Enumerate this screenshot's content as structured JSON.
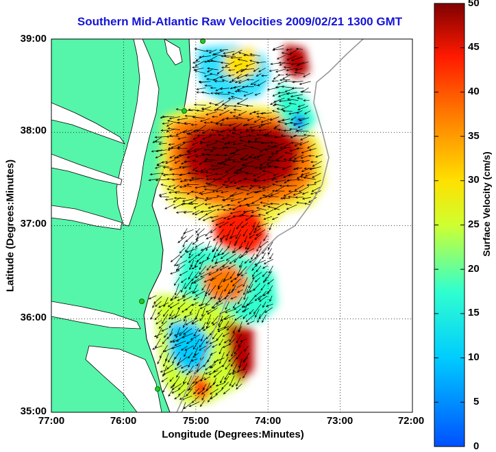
{
  "title": "Southern Mid-Atlantic Raw Velocities 2009/02/21 1300 GMT",
  "x_axis": {
    "label": "Longitude (Degrees:Minutes)",
    "ticks": [
      "77:00",
      "76:00",
      "75:00",
      "74:00",
      "73:00",
      "72:00"
    ]
  },
  "y_axis": {
    "label": "Latitude (Degrees:Minutes)",
    "ticks": [
      "39:00",
      "38:00",
      "37:00",
      "36:00",
      "35:00"
    ]
  },
  "colorbar": {
    "label": "Surface Velocity (cm/s)",
    "ticks": [
      "50",
      "45",
      "40",
      "35",
      "30",
      "25",
      "20",
      "15",
      "10",
      "5",
      "0"
    ],
    "min": 0,
    "max": 50,
    "colormap": "jet"
  },
  "map": {
    "lon_range": [
      -77,
      -72
    ],
    "lat_range": [
      35,
      39
    ],
    "land_color": "#55f5aa",
    "water_color": "#ffffff",
    "grid": "dotted",
    "radar_site_color": "#22cc22"
  }
}
